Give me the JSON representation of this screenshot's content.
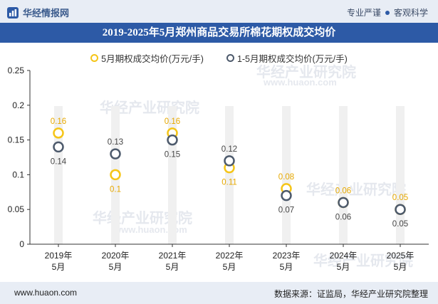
{
  "header": {
    "brand": "华经情报网",
    "slogan_left": "专业严谨",
    "slogan_right": "客观科学"
  },
  "title": "2019-2025年5月郑州商品交易所棉花期权成交均价",
  "watermarks": [
    "华经产业研究院",
    "www.huaon.com"
  ],
  "chart_data": {
    "type": "scatter",
    "categories": [
      "2019年\n5月",
      "2020年\n5月",
      "2021年\n5月",
      "2022年\n5月",
      "2023年\n5月",
      "2024年\n5月",
      "2025年\n5月"
    ],
    "series": [
      {
        "name": "5月期权成交均价(万元/手)",
        "values": [
          0.16,
          0.1,
          0.16,
          0.11,
          0.08,
          0.06,
          0.05
        ],
        "labels": [
          "0.16",
          "0.1",
          "0.16",
          "0.11",
          "0.08",
          "0.06",
          "0.05"
        ],
        "color": "#f5c518"
      },
      {
        "name": "1-5月期权成交均价(万元/手)",
        "values": [
          0.14,
          0.13,
          0.15,
          0.12,
          0.07,
          0.06,
          0.05
        ],
        "labels": [
          "0.14",
          "0.13",
          "0.15",
          "0.12",
          "0.07",
          "0.06",
          "0.05"
        ],
        "color": "#4d5a6c"
      }
    ],
    "ylim": [
      0,
      0.25
    ],
    "yticks": [
      "0",
      "0.05",
      "0.1",
      "0.15",
      "0.2",
      "0.25"
    ],
    "legend_position": "top",
    "grid": false
  },
  "footer": {
    "url": "www.huaon.com",
    "source": "数据来源：证监局，华经产业研究院整理"
  }
}
